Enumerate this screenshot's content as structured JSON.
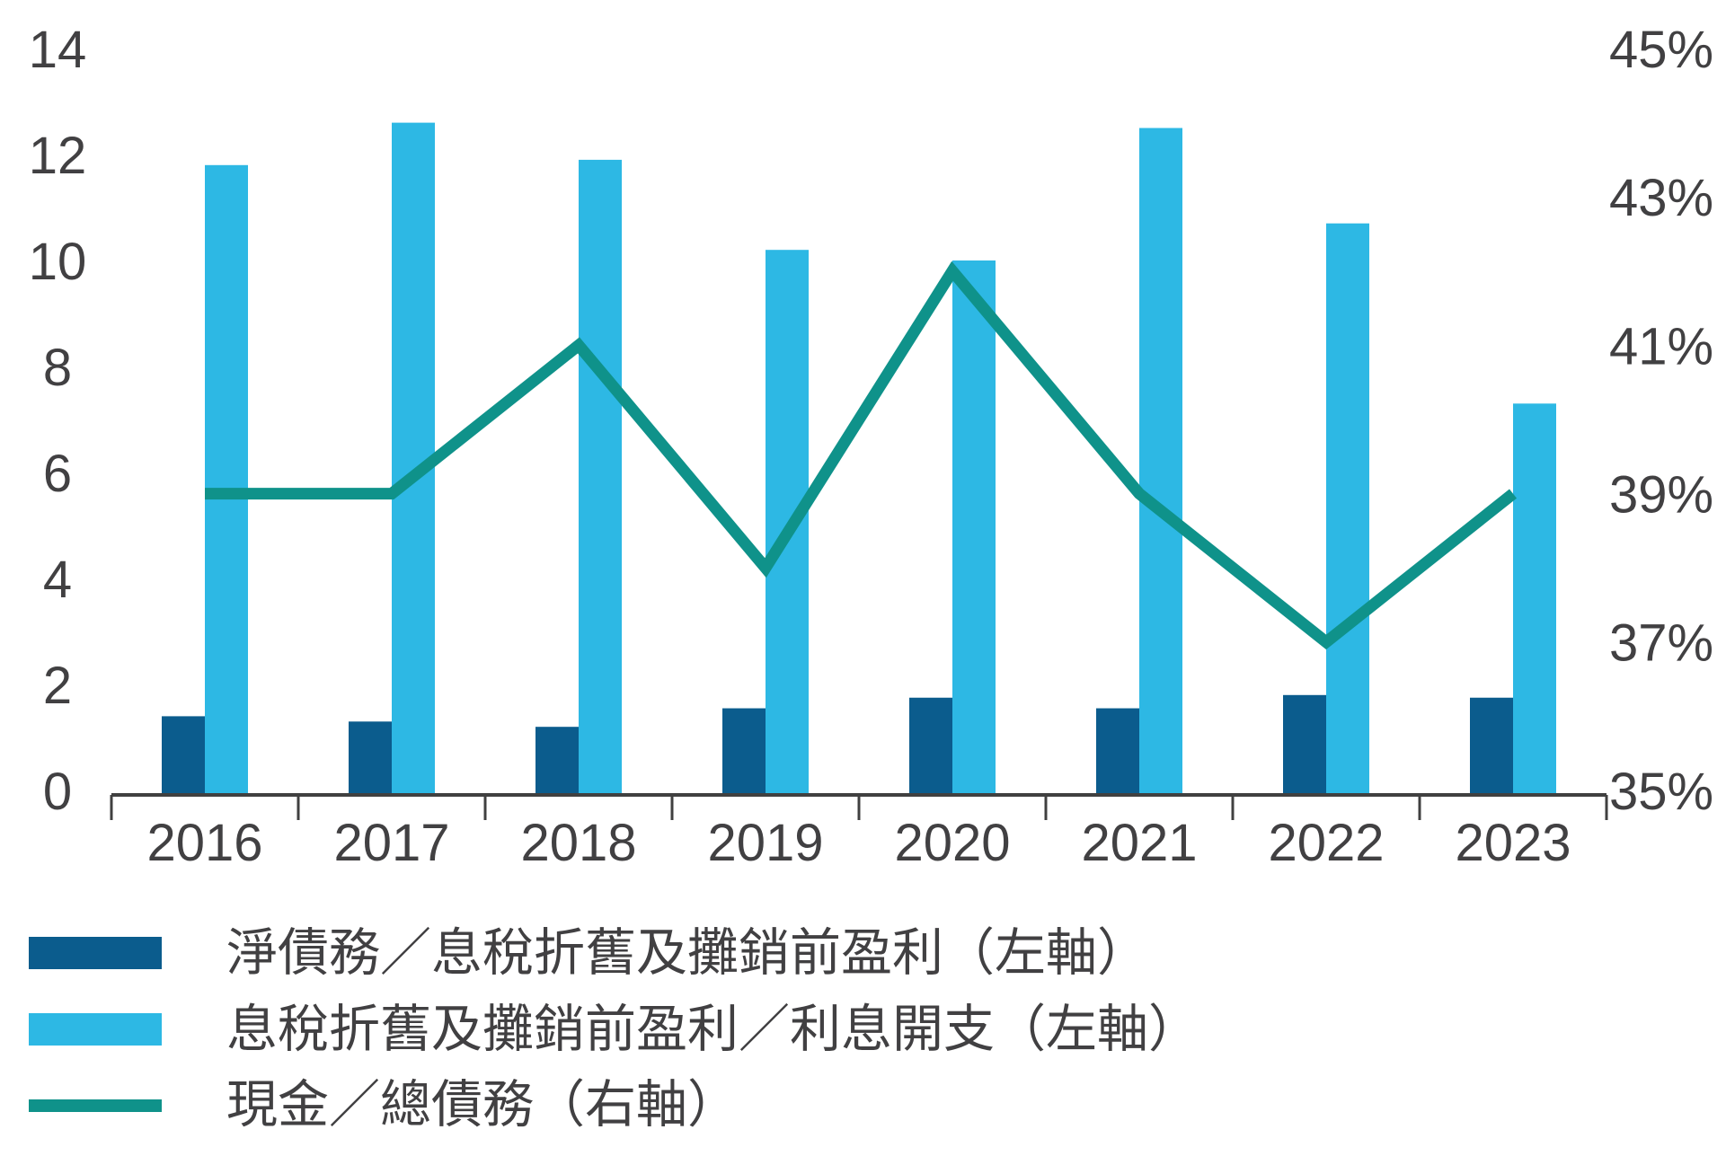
{
  "chart_data": {
    "type": "bar",
    "title": "",
    "categories": [
      "2016",
      "2017",
      "2018",
      "2019",
      "2020",
      "2021",
      "2022",
      "2023"
    ],
    "series": [
      {
        "name": "淨債務／息稅折舊及攤銷前盈利（左軸）",
        "type": "bar",
        "axis": "left",
        "color": "#0B5C8D",
        "values": [
          1.4,
          1.3,
          1.2,
          1.55,
          1.75,
          1.55,
          1.8,
          1.75
        ]
      },
      {
        "name": "息稅折舊及攤銷前盈利／利息開支（左軸）",
        "type": "bar",
        "axis": "left",
        "color": "#2DB8E4",
        "values": [
          11.8,
          12.6,
          11.9,
          10.2,
          10.0,
          12.5,
          10.7,
          7.3
        ]
      },
      {
        "name": "現金／總債務（右軸）",
        "type": "line",
        "axis": "right",
        "color": "#0F928A",
        "values": [
          39,
          39,
          41,
          38,
          42,
          39,
          37,
          39
        ],
        "unit": "%"
      }
    ],
    "left_axis": {
      "min": 0,
      "max": 14,
      "tick_values": [
        0,
        2,
        4,
        6,
        8,
        10,
        12,
        14
      ],
      "tick_labels": [
        "0",
        "2",
        "4",
        "6",
        "8",
        "10",
        "12",
        "14"
      ]
    },
    "right_axis": {
      "min": 35,
      "max": 45,
      "tick_values": [
        35,
        37,
        39,
        41,
        43,
        45
      ],
      "tick_labels": [
        "35%",
        "37%",
        "39%",
        "41%",
        "43%",
        "45%"
      ]
    },
    "grid": false,
    "legend_position": "bottom-left",
    "text_color": "#414042",
    "axis_color": "#404040"
  }
}
